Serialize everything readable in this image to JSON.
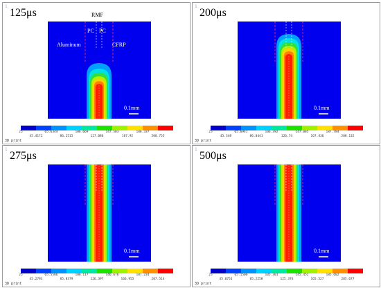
{
  "panels": [
    {
      "index": "1",
      "time": "125μs",
      "footer": "3D print",
      "rmf_label": "RMF",
      "pc_left": "PC",
      "pc_right": "PC",
      "aluminum_label": "Aluminum",
      "cfrp_label": "CFRP",
      "scale_label": "0.1mm",
      "ticks_top": [
        "25",
        "65.6344",
        "106.669",
        "147.503",
        "188.337"
      ],
      "ticks_bot": [
        "45.4172",
        "86.2515",
        "127.086",
        "167.92",
        "208.755"
      ]
    },
    {
      "index": "1",
      "time": "200μs",
      "footer": "3D print",
      "scale_label": "0.1mm",
      "ticks_top": [
        "25",
        "65.6941",
        "106.392",
        "147.085",
        "187.784"
      ],
      "ticks_bot": [
        "45.348",
        "86.0441",
        "126.74",
        "167.436",
        "208.132"
      ]
    },
    {
      "index": "1",
      "time": "275μs",
      "footer": "3D print",
      "scale_label": "0.1mm",
      "ticks_top": [
        "25",
        "65.5586",
        "106.117",
        "146.676",
        "187.234"
      ],
      "ticks_bot": [
        "45.2793",
        "85.8379",
        "126.397",
        "166.955",
        "207.514"
      ]
    },
    {
      "index": "1",
      "time": "500μs",
      "footer": "3D print",
      "scale_label": "0.1mm",
      "ticks_top": [
        "25",
        "65.1506",
        "105.301",
        "145.452",
        "185.602"
      ],
      "ticks_bot": [
        "45.0753",
        "85.2258",
        "125.376",
        "165.527",
        "205.677"
      ]
    }
  ],
  "colors": {
    "field_blue": "#0000ee",
    "colorbar": [
      "#0000c8",
      "#0040ff",
      "#0090ff",
      "#00d0ff",
      "#00e8a0",
      "#20e000",
      "#a0f000",
      "#ffe000",
      "#ff9000",
      "#ff0000"
    ]
  }
}
